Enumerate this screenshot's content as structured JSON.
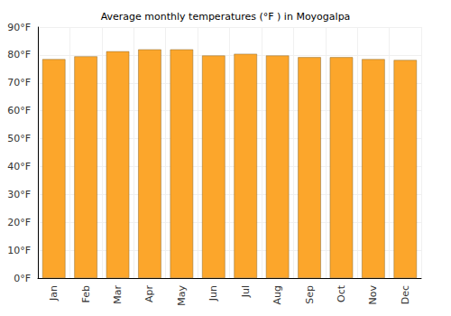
{
  "chart_data": {
    "type": "bar",
    "title": "Average monthly temperatures (°F ) in Moyogalpa",
    "categories": [
      "Jan",
      "Feb",
      "Mar",
      "Apr",
      "May",
      "Jun",
      "Jul",
      "Aug",
      "Sep",
      "Oct",
      "Nov",
      "Dec"
    ],
    "values": [
      78.5,
      79.5,
      81.3,
      82.0,
      82.0,
      79.8,
      80.4,
      79.8,
      79.2,
      79.2,
      78.5,
      78.2
    ],
    "color": "#fca62b",
    "ylim": [
      0,
      90
    ],
    "yticks": [
      {
        "value": 0,
        "label": "0°F"
      },
      {
        "value": 10,
        "label": "10°F"
      },
      {
        "value": 20,
        "label": "20°F"
      },
      {
        "value": 30,
        "label": "30°F"
      },
      {
        "value": 40,
        "label": "40°F"
      },
      {
        "value": 50,
        "label": "50°F"
      },
      {
        "value": 60,
        "label": "60°F"
      },
      {
        "value": 70,
        "label": "70°F"
      },
      {
        "value": 80,
        "label": "80°F"
      },
      {
        "value": 90,
        "label": "90°F"
      }
    ],
    "grid": true
  }
}
